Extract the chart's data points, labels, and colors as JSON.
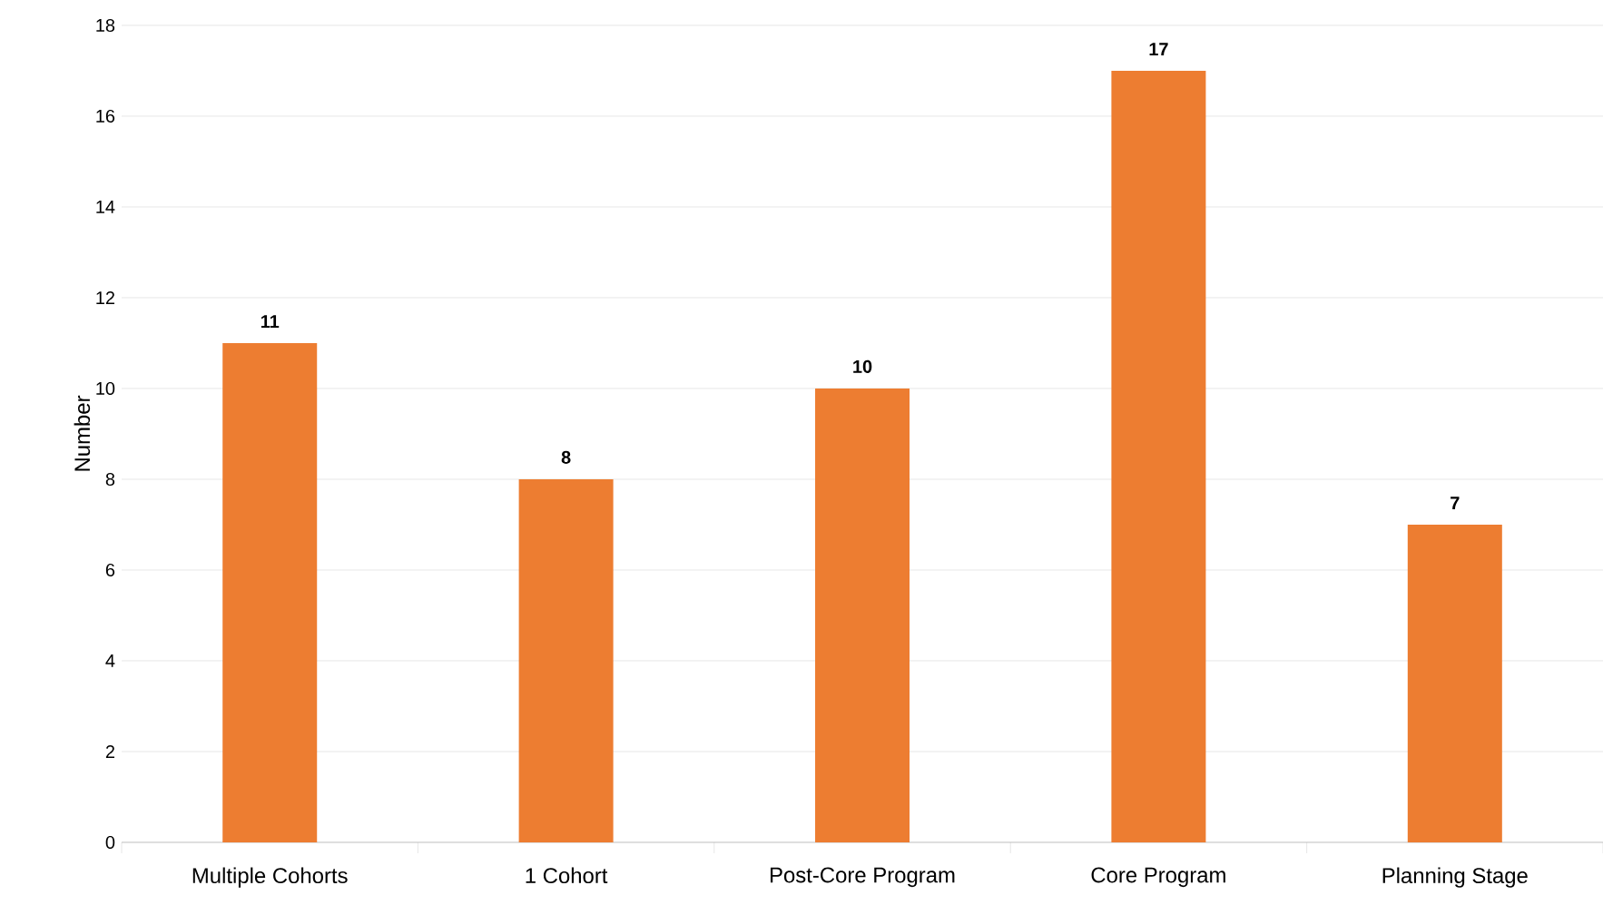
{
  "chart_data": {
    "type": "bar",
    "ylabel": "Number",
    "categories": [
      "Multiple Cohorts",
      "1 Cohort",
      "Post-Core Program",
      "Core Program",
      "Planning Stage"
    ],
    "values": [
      11,
      8,
      10,
      17,
      7
    ],
    "color": "#ed7d31",
    "ylim": [
      0,
      18
    ],
    "yticks": [
      0,
      2,
      4,
      6,
      8,
      10,
      12,
      14,
      16,
      18
    ],
    "grid": "y",
    "data_labels": true
  }
}
